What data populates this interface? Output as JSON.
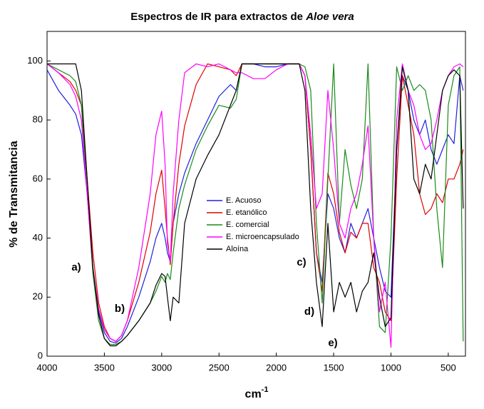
{
  "chart_data": {
    "type": "line",
    "title": {
      "text": "Espectros de IR para extractos de",
      "italic": "Aloe vera"
    },
    "xlabel": {
      "text": "cm",
      "sup": "-1"
    },
    "ylabel": "% de Transmitancia",
    "xlim": [
      4000,
      350
    ],
    "ylim": [
      0,
      110
    ],
    "xticks": [
      4000,
      3500,
      3000,
      2500,
      2000,
      1500,
      1000,
      500
    ],
    "yticks": [
      0,
      20,
      40,
      60,
      80,
      100
    ],
    "grid": false,
    "legend": "center",
    "annotations": [
      "a)",
      "b)",
      "c)",
      "d)",
      "e)"
    ],
    "x": [
      4000,
      3900,
      3800,
      3750,
      3700,
      3650,
      3600,
      3550,
      3500,
      3450,
      3400,
      3350,
      3300,
      3200,
      3100,
      3050,
      3000,
      2970,
      2950,
      2925,
      2900,
      2850,
      2800,
      2700,
      2600,
      2500,
      2400,
      2350,
      2300,
      2200,
      2100,
      2000,
      1900,
      1800,
      1750,
      1700,
      1650,
      1600,
      1550,
      1500,
      1450,
      1400,
      1350,
      1300,
      1250,
      1200,
      1150,
      1100,
      1050,
      1000,
      950,
      900,
      850,
      800,
      750,
      700,
      650,
      600,
      550,
      500,
      450,
      400,
      370
    ],
    "series": [
      {
        "name": "E. Acuoso",
        "color": "#2020e0",
        "values": [
          97,
          90,
          85,
          82,
          75,
          55,
          30,
          15,
          8,
          5,
          4.5,
          6,
          10,
          20,
          32,
          40,
          45,
          40,
          35,
          32,
          45,
          55,
          62,
          72,
          80,
          88,
          92,
          90,
          99,
          99,
          98,
          98,
          99,
          99,
          95,
          70,
          35,
          25,
          55,
          50,
          40,
          35,
          45,
          40,
          45,
          50,
          40,
          30,
          22,
          20,
          70,
          95,
          90,
          80,
          75,
          80,
          70,
          65,
          70,
          75,
          72,
          95,
          90
        ]
      },
      {
        "name": "E. etanólico",
        "color": "#e00000",
        "values": [
          99,
          96,
          93,
          90,
          85,
          60,
          35,
          18,
          10,
          6,
          5,
          7,
          12,
          25,
          42,
          55,
          63,
          50,
          40,
          31,
          45,
          65,
          78,
          92,
          99,
          98,
          97,
          95,
          99,
          99,
          99,
          99,
          99,
          99,
          95,
          70,
          35,
          22,
          62,
          55,
          42,
          35,
          42,
          40,
          45,
          45,
          30,
          25,
          15,
          12,
          60,
          95,
          85,
          75,
          55,
          48,
          50,
          55,
          52,
          60,
          60,
          65,
          70
        ]
      },
      {
        "name": "E. comercial",
        "color": "#1a8a1a",
        "values": [
          99,
          97,
          95,
          93,
          85,
          55,
          28,
          12,
          6,
          4,
          4,
          5,
          7,
          12,
          18,
          22,
          27,
          25,
          28,
          26,
          35,
          50,
          58,
          70,
          78,
          85,
          84,
          87,
          99,
          99,
          99,
          99,
          99,
          99,
          98,
          90,
          45,
          18,
          60,
          99,
          45,
          70,
          58,
          50,
          60,
          99,
          40,
          10,
          8,
          40,
          98,
          90,
          95,
          90,
          92,
          90,
          80,
          50,
          30,
          85,
          95,
          98,
          5
        ]
      },
      {
        "name": "E. microencapsulado",
        "color": "#ff00ff",
        "values": [
          99,
          96,
          92,
          88,
          80,
          55,
          30,
          16,
          9,
          6,
          5,
          7,
          12,
          30,
          55,
          75,
          83,
          65,
          38,
          32,
          55,
          80,
          96,
          99,
          98,
          99,
          97,
          96,
          96,
          94,
          94,
          97,
          99,
          99,
          95,
          75,
          50,
          55,
          90,
          70,
          45,
          40,
          50,
          55,
          65,
          78,
          40,
          15,
          25,
          3,
          80,
          99,
          90,
          85,
          75,
          70,
          72,
          80,
          90,
          95,
          98,
          99,
          98
        ]
      },
      {
        "name": "Aloína",
        "color": "#000000",
        "values": [
          99,
          99,
          99,
          99,
          90,
          60,
          30,
          14,
          6,
          3.5,
          3.5,
          5,
          7,
          12,
          18,
          24,
          28,
          27,
          20,
          12,
          20,
          18,
          45,
          60,
          68,
          75,
          85,
          90,
          99,
          99,
          99,
          99,
          99,
          99,
          90,
          50,
          25,
          10,
          45,
          15,
          25,
          20,
          25,
          15,
          22,
          25,
          35,
          20,
          10,
          13,
          70,
          98,
          90,
          60,
          55,
          65,
          60,
          75,
          90,
          95,
          97,
          95,
          50
        ]
      }
    ]
  }
}
